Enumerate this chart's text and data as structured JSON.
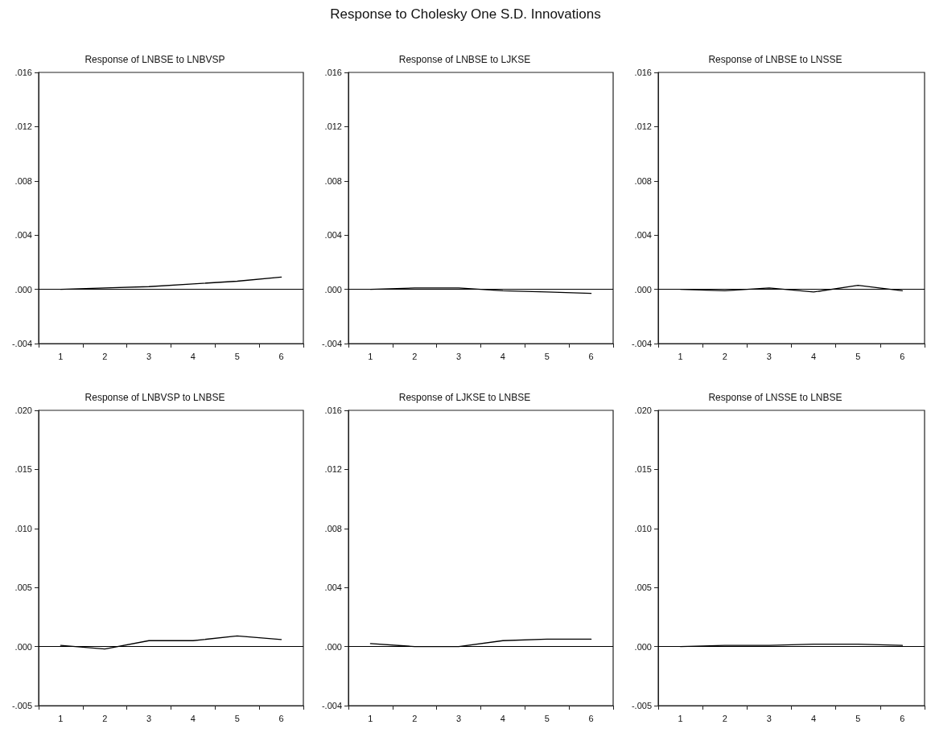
{
  "chart_data": [
    {
      "type": "line",
      "title": "Response of LNBSE to LNBVSP",
      "annotations": [
        "Response to Cholesky One S.D. Innovations"
      ],
      "categories": [
        "1",
        "2",
        "3",
        "4",
        "5",
        "6"
      ],
      "series": [
        {
          "color": "#000000",
          "values": [
            0,
            0.0001,
            0.0002,
            0.0004,
            0.0006,
            0.0009
          ]
        }
      ],
      "ylim": [
        -0.004,
        0.016
      ],
      "yticks": [
        {
          "value": -0.004,
          "label": "-.004"
        },
        {
          "value": 0,
          "label": ".000"
        },
        {
          "value": 0.004,
          "label": ".004"
        },
        {
          "value": 0.008,
          "label": ".008"
        },
        {
          "value": 0.012,
          "label": ".012"
        },
        {
          "value": 0.016,
          "label": ".016"
        }
      ],
      "ref_lines": [
        {
          "axis": "y",
          "value": 0,
          "color": "#000000"
        }
      ],
      "grid": false,
      "marker": "none",
      "line_style": "solid"
    },
    {
      "type": "line",
      "title": "Response of LNBSE to LJKSE",
      "categories": [
        "1",
        "2",
        "3",
        "4",
        "5",
        "6"
      ],
      "series": [
        {
          "color": "#000000",
          "values": [
            0,
            0.0001,
            0.0001,
            -0.0001,
            -0.0002,
            -0.0003
          ]
        }
      ],
      "ylim": [
        -0.004,
        0.016
      ],
      "yticks": [
        {
          "value": -0.004,
          "label": "-.004"
        },
        {
          "value": 0,
          "label": ".000"
        },
        {
          "value": 0.004,
          "label": ".004"
        },
        {
          "value": 0.008,
          "label": ".008"
        },
        {
          "value": 0.012,
          "label": ".012"
        },
        {
          "value": 0.016,
          "label": ".016"
        }
      ],
      "ref_lines": [
        {
          "axis": "y",
          "value": 0,
          "color": "#000000"
        }
      ],
      "grid": false,
      "marker": "none",
      "line_style": "solid"
    },
    {
      "type": "line",
      "title": "Response of LNBSE to LNSSE",
      "categories": [
        "1",
        "2",
        "3",
        "4",
        "5",
        "6"
      ],
      "series": [
        {
          "color": "#000000",
          "values": [
            0,
            -0.0001,
            0.0001,
            -0.0002,
            0.0003,
            -0.0001
          ]
        }
      ],
      "ylim": [
        -0.004,
        0.016
      ],
      "yticks": [
        {
          "value": -0.004,
          "label": "-.004"
        },
        {
          "value": 0,
          "label": ".000"
        },
        {
          "value": 0.004,
          "label": ".004"
        },
        {
          "value": 0.008,
          "label": ".008"
        },
        {
          "value": 0.012,
          "label": ".012"
        },
        {
          "value": 0.016,
          "label": ".016"
        }
      ],
      "ref_lines": [
        {
          "axis": "y",
          "value": 0,
          "color": "#000000"
        }
      ],
      "grid": false,
      "marker": "none",
      "line_style": "solid"
    },
    {
      "type": "line",
      "title": "Response of LNBVSP to LNBSE",
      "categories": [
        "1",
        "2",
        "3",
        "4",
        "5",
        "6"
      ],
      "series": [
        {
          "color": "#000000",
          "values": [
            0.0001,
            -0.0002,
            0.0005,
            0.0005,
            0.0009,
            0.0006
          ]
        }
      ],
      "ylim": [
        -0.005,
        0.02
      ],
      "yticks": [
        {
          "value": -0.005,
          "label": "-.005"
        },
        {
          "value": 0,
          "label": ".000"
        },
        {
          "value": 0.005,
          "label": ".005"
        },
        {
          "value": 0.01,
          "label": ".010"
        },
        {
          "value": 0.015,
          "label": ".015"
        },
        {
          "value": 0.02,
          "label": ".020"
        }
      ],
      "ref_lines": [
        {
          "axis": "y",
          "value": 0,
          "color": "#000000"
        }
      ],
      "grid": false,
      "marker": "none",
      "line_style": "solid"
    },
    {
      "type": "line",
      "title": "Response of LJKSE to LNBSE",
      "categories": [
        "1",
        "2",
        "3",
        "4",
        "5",
        "6"
      ],
      "series": [
        {
          "color": "#000000",
          "values": [
            0.0002,
            0,
            0,
            0.0004,
            0.0005,
            0.0005
          ]
        }
      ],
      "ylim": [
        -0.004,
        0.016
      ],
      "yticks": [
        {
          "value": -0.004,
          "label": "-.004"
        },
        {
          "value": 0,
          "label": ".000"
        },
        {
          "value": 0.004,
          "label": ".004"
        },
        {
          "value": 0.008,
          "label": ".008"
        },
        {
          "value": 0.012,
          "label": ".012"
        },
        {
          "value": 0.016,
          "label": ".016"
        }
      ],
      "ref_lines": [
        {
          "axis": "y",
          "value": 0,
          "color": "#000000"
        }
      ],
      "grid": false,
      "marker": "none",
      "line_style": "solid"
    },
    {
      "type": "line",
      "title": "Response of LNSSE to LNBSE",
      "categories": [
        "1",
        "2",
        "3",
        "4",
        "5",
        "6"
      ],
      "series": [
        {
          "color": "#000000",
          "values": [
            0,
            0.0001,
            0.0001,
            0.0002,
            0.0002,
            0.0001
          ]
        }
      ],
      "ylim": [
        -0.005,
        0.02
      ],
      "yticks": [
        {
          "value": -0.005,
          "label": "-.005"
        },
        {
          "value": 0,
          "label": ".000"
        },
        {
          "value": 0.005,
          "label": ".005"
        },
        {
          "value": 0.01,
          "label": ".010"
        },
        {
          "value": 0.015,
          "label": ".015"
        },
        {
          "value": 0.02,
          "label": ".020"
        }
      ],
      "ref_lines": [
        {
          "axis": "y",
          "value": 0,
          "color": "#000000"
        }
      ],
      "grid": false,
      "marker": "none",
      "line_style": "solid"
    }
  ]
}
